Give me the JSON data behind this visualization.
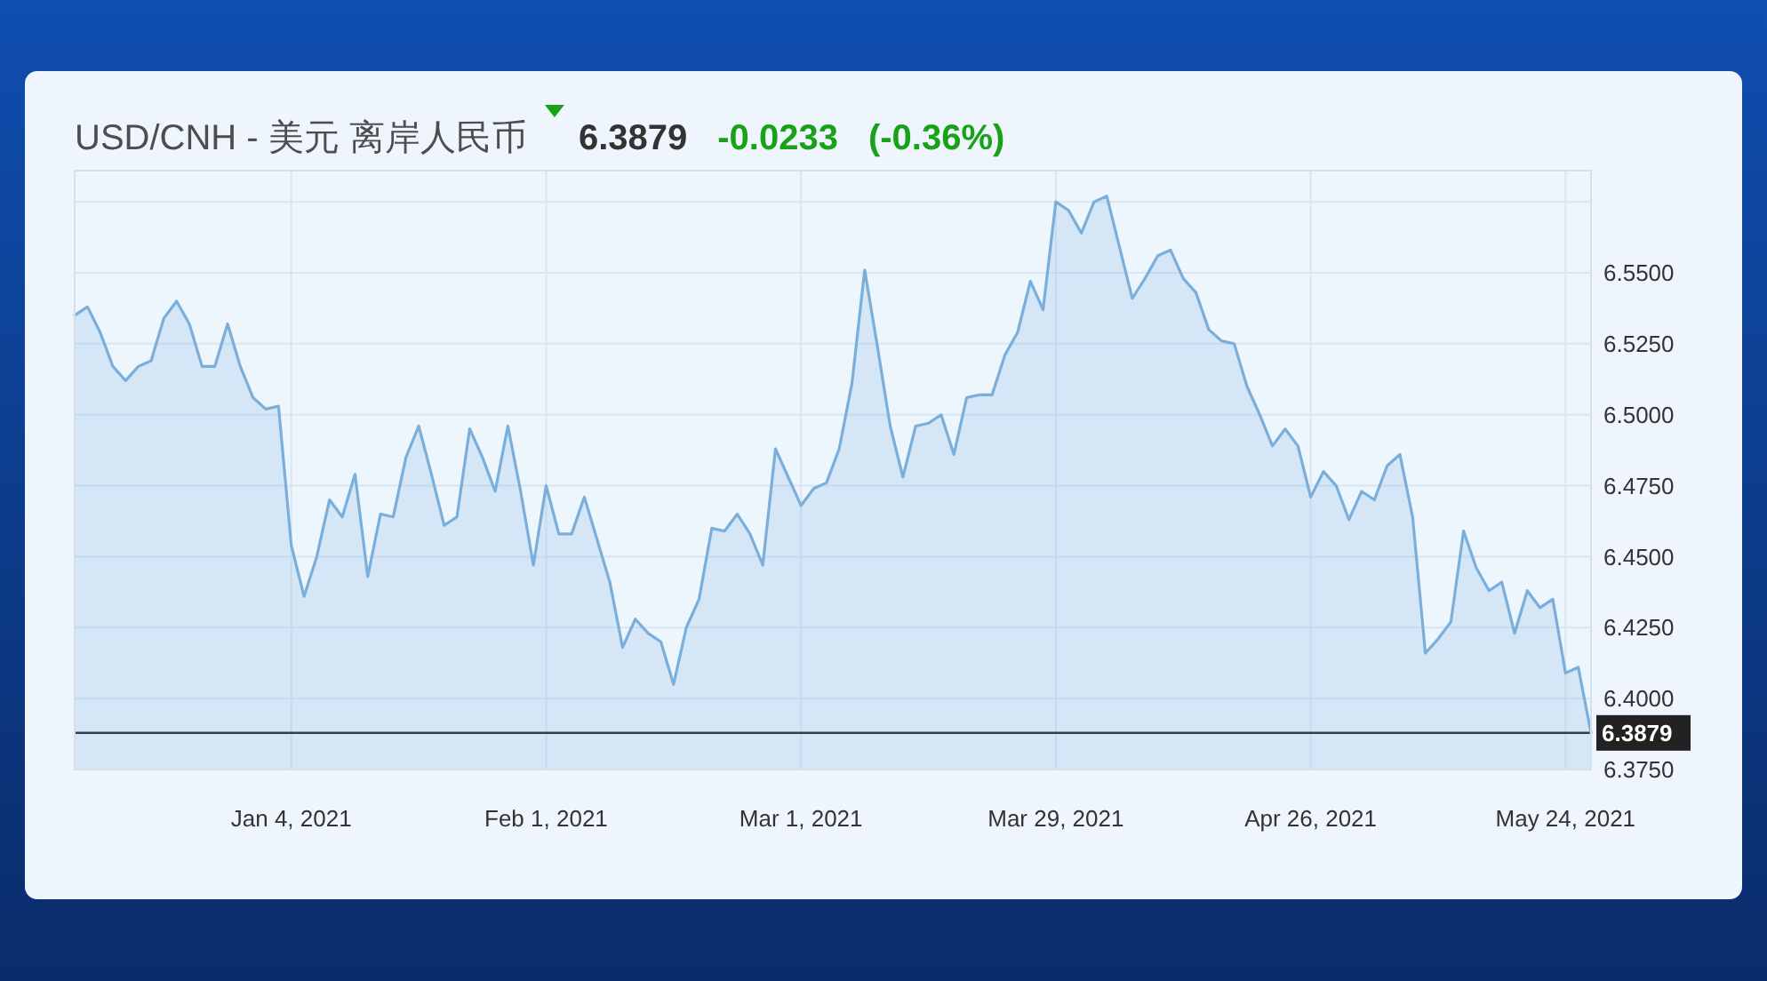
{
  "chart_data": {
    "type": "area",
    "title": "USD/CNH - 美元 离岸人民币",
    "annotations": [
      "6.3879",
      "-0.0233",
      "(-0.36%)"
    ],
    "categories": [
      null,
      null,
      null,
      null,
      null,
      null,
      null,
      null,
      null,
      null,
      null,
      null,
      null,
      null,
      null,
      null,
      null,
      "Jan 4, 2021",
      null,
      null,
      null,
      null,
      null,
      null,
      null,
      null,
      null,
      null,
      null,
      null,
      null,
      null,
      null,
      null,
      null,
      null,
      null,
      "Feb 1, 2021",
      null,
      null,
      null,
      null,
      null,
      null,
      null,
      null,
      null,
      null,
      null,
      null,
      null,
      null,
      null,
      null,
      null,
      null,
      null,
      "Mar 1, 2021",
      null,
      null,
      null,
      null,
      null,
      null,
      null,
      null,
      null,
      null,
      null,
      null,
      null,
      null,
      null,
      null,
      null,
      null,
      null,
      "Mar 29, 2021",
      null,
      null,
      null,
      null,
      null,
      null,
      null,
      null,
      null,
      null,
      null,
      null,
      null,
      null,
      null,
      null,
      null,
      null,
      null,
      "Apr 26, 2021",
      null,
      null,
      null,
      null,
      null,
      null,
      null,
      null,
      null,
      null,
      null,
      null,
      null,
      null,
      null,
      null,
      null,
      null,
      null,
      "May 24, 2021",
      null,
      null
    ],
    "values": [
      6.535,
      6.538,
      6.529,
      6.517,
      6.512,
      6.517,
      6.519,
      6.534,
      6.54,
      6.532,
      6.517,
      6.517,
      6.532,
      6.517,
      6.506,
      6.502,
      6.503,
      6.454,
      6.436,
      6.45,
      6.47,
      6.464,
      6.479,
      6.443,
      6.465,
      6.464,
      6.485,
      6.496,
      6.479,
      6.461,
      6.464,
      6.495,
      6.485,
      6.473,
      6.496,
      6.473,
      6.447,
      6.475,
      6.458,
      6.458,
      6.471,
      6.456,
      6.441,
      6.418,
      6.428,
      6.423,
      6.42,
      6.405,
      6.425,
      6.435,
      6.46,
      6.459,
      6.465,
      6.458,
      6.447,
      6.488,
      6.478,
      6.468,
      6.474,
      6.476,
      6.488,
      6.511,
      6.551,
      6.524,
      6.496,
      6.478,
      6.496,
      6.497,
      6.5,
      6.486,
      6.506,
      6.507,
      6.507,
      6.521,
      6.529,
      6.547,
      6.537,
      6.575,
      6.572,
      6.564,
      6.575,
      6.577,
      6.559,
      6.541,
      6.548,
      6.556,
      6.558,
      6.548,
      6.543,
      6.53,
      6.526,
      6.525,
      6.51,
      6.5,
      6.489,
      6.495,
      6.489,
      6.471,
      6.48,
      6.475,
      6.463,
      6.473,
      6.47,
      6.482,
      6.486,
      6.464,
      6.416,
      6.421,
      6.427,
      6.459,
      6.446,
      6.438,
      6.441,
      6.423,
      6.438,
      6.432,
      6.435,
      6.409,
      6.411,
      6.3879
    ],
    "color": "#7aaedb",
    "ylim": [
      6.375,
      6.586
    ],
    "yticks": [
      {
        "value": 6.375,
        "label": "6.3750"
      },
      {
        "value": 6.4,
        "label": "6.4000"
      },
      {
        "value": 6.425,
        "label": "6.4250"
      },
      {
        "value": 6.45,
        "label": "6.4500"
      },
      {
        "value": 6.475,
        "label": "6.4750"
      },
      {
        "value": 6.5,
        "label": "6.5000"
      },
      {
        "value": 6.525,
        "label": "6.5250"
      },
      {
        "value": 6.55,
        "label": "6.5500"
      },
      {
        "value": 6.575,
        "label": null
      }
    ],
    "grid": true,
    "ref_lines": [
      {
        "axis": "y",
        "value": 6.3879,
        "label": "6.3879",
        "color": "#222222"
      }
    ]
  }
}
